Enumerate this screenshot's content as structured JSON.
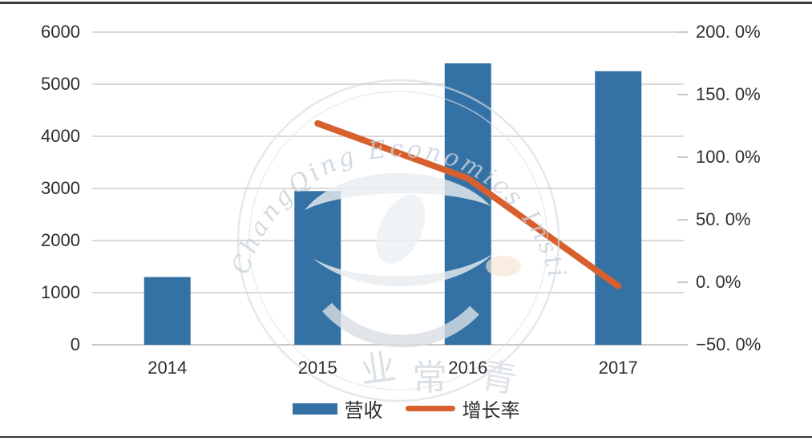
{
  "chart_data": {
    "type": "bar",
    "categories": [
      "2014",
      "2015",
      "2016",
      "2017"
    ],
    "series": [
      {
        "name": "营收",
        "chart": "bar",
        "axis": "left",
        "values": [
          1300,
          2950,
          5400,
          5250
        ]
      },
      {
        "name": "增长率",
        "chart": "line",
        "axis": "right",
        "values_pct": [
          null,
          127,
          83,
          -3
        ]
      }
    ],
    "left_axis": {
      "min": 0,
      "max": 6000,
      "tick_labels": [
        "6000",
        "5000",
        "4000",
        "3000",
        "2000",
        "1000",
        "0"
      ]
    },
    "right_axis": {
      "min": -50,
      "max": 200,
      "tick_labels": [
        "200. 0%",
        "150. 0%",
        "100. 0%",
        "50. 0%",
        "0. 0%",
        "−50. 0%"
      ]
    },
    "title": "",
    "xlabel": "",
    "ylabel": "",
    "grid": true,
    "legend_position": "bottom"
  },
  "legend": {
    "revenue_label": "营收",
    "growth_label": "增长率"
  },
  "colors": {
    "bar": "#3471A5",
    "line": "#D8602E",
    "grid": "#D9D9D9",
    "baseline": "#C8C8C8",
    "tick": "#C9C9C9",
    "text": "#2E2E2E",
    "border": "#3A3A3A",
    "watermark": "#CBD4DC"
  },
  "watermark": {
    "arc_text": "QiYeChangQing Economics Institute",
    "bottom_chars": [
      "业",
      "常",
      "青"
    ]
  }
}
